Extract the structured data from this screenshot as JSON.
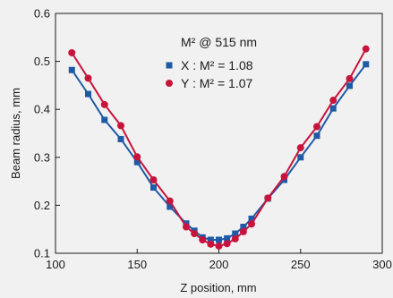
{
  "chart_data": {
    "type": "line",
    "title": "",
    "xlabel": "Z position, mm",
    "ylabel": "Beam radius, mm",
    "xlim": [
      100,
      300
    ],
    "ylim": [
      0.1,
      0.6
    ],
    "xticks": [
      100,
      150,
      200,
      250,
      300
    ],
    "yticks": [
      0.1,
      0.2,
      0.3,
      0.4,
      0.5,
      0.6
    ],
    "xtick_labels": [
      "100",
      "150",
      "200",
      "250",
      "300"
    ],
    "ytick_labels": [
      "0.1",
      "0.2",
      "0.3",
      "0.4",
      "0.5",
      "0.6"
    ],
    "grid": false,
    "legend": {
      "title": "M² @ 515 nm",
      "placement": "top-center"
    },
    "series": [
      {
        "name": "X : M² = 1.08",
        "color": "#1f5aa6",
        "marker": "square",
        "x": [
          110,
          120,
          130,
          140,
          150,
          160,
          170,
          180,
          185,
          190,
          195,
          200,
          205,
          210,
          215,
          220,
          230,
          240,
          250,
          260,
          270,
          280,
          290
        ],
        "y": [
          0.482,
          0.432,
          0.378,
          0.338,
          0.29,
          0.237,
          0.197,
          0.162,
          0.147,
          0.133,
          0.128,
          0.128,
          0.131,
          0.141,
          0.155,
          0.172,
          0.214,
          0.253,
          0.3,
          0.345,
          0.402,
          0.449,
          0.494
        ]
      },
      {
        "name": "Y : M² = 1.07",
        "color": "#c8143c",
        "marker": "circle",
        "x": [
          110,
          120,
          130,
          140,
          150,
          160,
          170,
          180,
          185,
          190,
          195,
          200,
          205,
          210,
          215,
          220,
          230,
          240,
          250,
          260,
          270,
          280,
          290
        ],
        "y": [
          0.518,
          0.465,
          0.41,
          0.366,
          0.301,
          0.253,
          0.209,
          0.155,
          0.141,
          0.128,
          0.119,
          0.115,
          0.12,
          0.13,
          0.145,
          0.161,
          0.215,
          0.26,
          0.32,
          0.364,
          0.419,
          0.464,
          0.526
        ]
      }
    ]
  }
}
